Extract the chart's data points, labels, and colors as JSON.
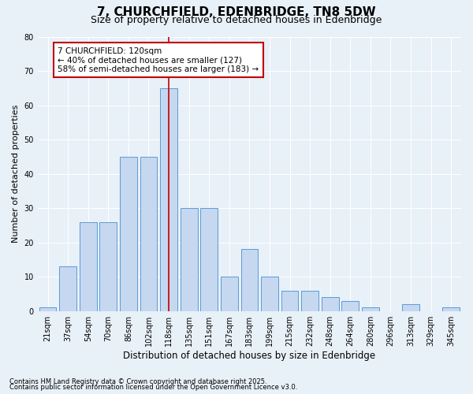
{
  "title": "7, CHURCHFIELD, EDENBRIDGE, TN8 5DW",
  "subtitle": "Size of property relative to detached houses in Edenbridge",
  "xlabel": "Distribution of detached houses by size in Edenbridge",
  "ylabel": "Number of detached properties",
  "footer1": "Contains HM Land Registry data © Crown copyright and database right 2025.",
  "footer2": "Contains public sector information licensed under the Open Government Licence v3.0.",
  "categories": [
    "21sqm",
    "37sqm",
    "54sqm",
    "70sqm",
    "86sqm",
    "102sqm",
    "118sqm",
    "135sqm",
    "151sqm",
    "167sqm",
    "183sqm",
    "199sqm",
    "215sqm",
    "232sqm",
    "248sqm",
    "264sqm",
    "280sqm",
    "296sqm",
    "313sqm",
    "329sqm",
    "345sqm"
  ],
  "values": [
    1,
    13,
    26,
    26,
    45,
    45,
    65,
    30,
    30,
    10,
    18,
    10,
    6,
    6,
    4,
    3,
    1,
    0,
    2,
    0,
    1
  ],
  "bar_color": "#c5d8f0",
  "bar_edge_color": "#5b9bd5",
  "vline_index": 6,
  "vline_color": "#c00000",
  "annotation_text": "7 CHURCHFIELD: 120sqm\n← 40% of detached houses are smaller (127)\n58% of semi-detached houses are larger (183) →",
  "annotation_box_facecolor": "#ffffff",
  "annotation_border_color": "#c00000",
  "ylim": [
    0,
    80
  ],
  "yticks": [
    0,
    10,
    20,
    30,
    40,
    50,
    60,
    70,
    80
  ],
  "bg_color": "#e8f0f8",
  "plot_bg_color": "#e8f0f8",
  "grid_color": "#ffffff",
  "title_fontsize": 11,
  "subtitle_fontsize": 9,
  "annot_fontsize": 7.5,
  "tick_fontsize": 7,
  "ylabel_fontsize": 8,
  "xlabel_fontsize": 8.5
}
